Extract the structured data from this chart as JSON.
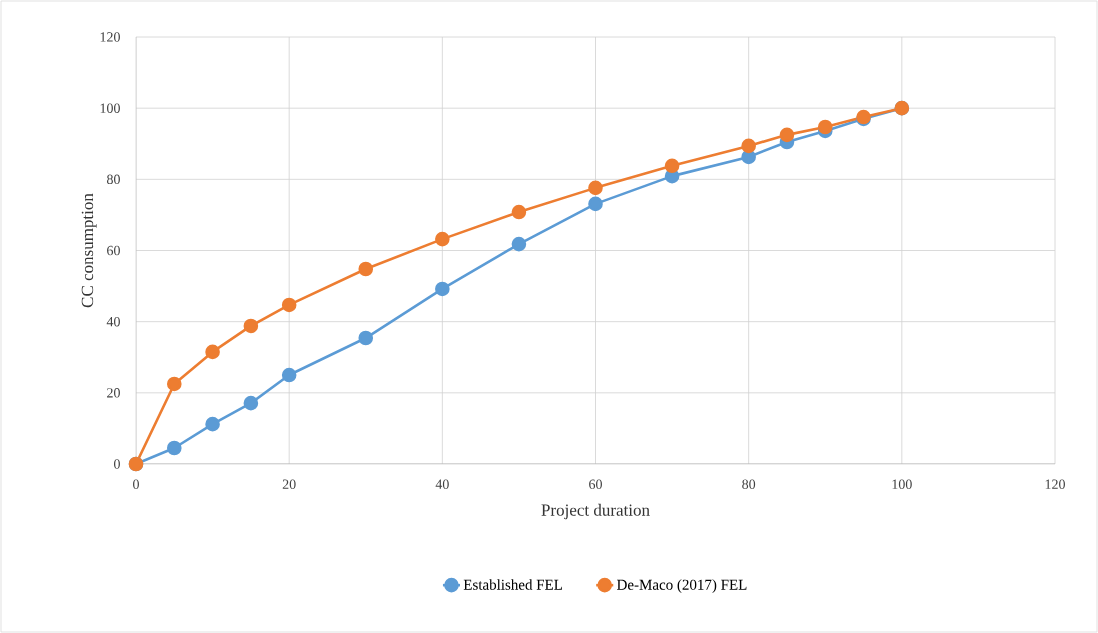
{
  "chart_data": {
    "type": "line",
    "xlabel": "Project duration",
    "ylabel": "CC consumption",
    "xlim": [
      0,
      120
    ],
    "ylim": [
      0,
      120
    ],
    "xticks": [
      0,
      20,
      40,
      60,
      80,
      100,
      120
    ],
    "yticks": [
      0,
      20,
      40,
      60,
      80,
      100,
      120
    ],
    "grid": true,
    "legend": "bottom",
    "marker": "circle",
    "line_style": "solid",
    "x": [
      0,
      5,
      10,
      15,
      20,
      30,
      40,
      50,
      60,
      70,
      80,
      85,
      90,
      95,
      100
    ],
    "series": [
      {
        "name": "Established FEL",
        "color": "#5b9bd5",
        "values": [
          0,
          4.5,
          11.2,
          17.1,
          25,
          35.4,
          49.2,
          61.8,
          73.1,
          80.9,
          86.3,
          90.5,
          93.6,
          97,
          100
        ]
      },
      {
        "name": "De-Maco (2017) FEL",
        "color": "#ed7d31",
        "values": [
          0,
          22.5,
          31.5,
          38.8,
          44.7,
          54.8,
          63.2,
          70.8,
          77.6,
          83.8,
          89.4,
          92.5,
          94.7,
          97.5,
          100
        ]
      }
    ]
  }
}
